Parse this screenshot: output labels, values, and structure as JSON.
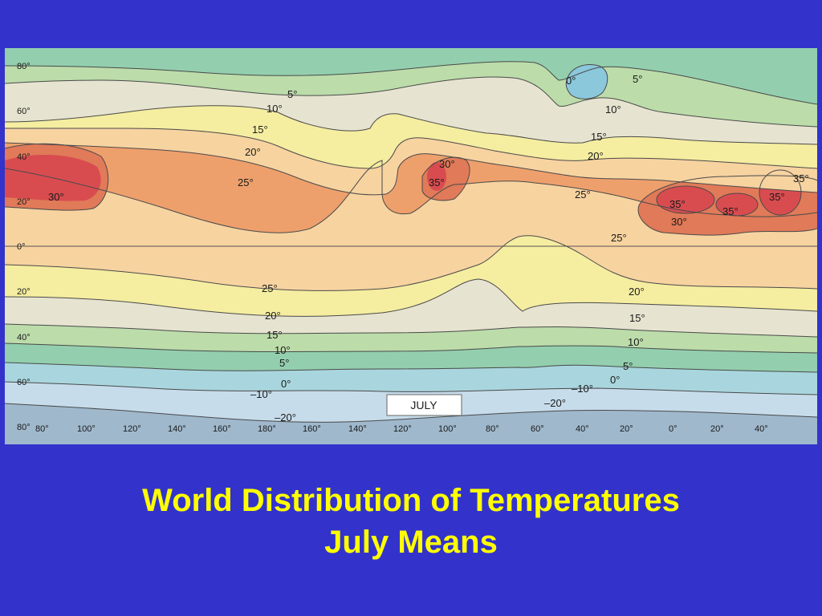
{
  "slide": {
    "background_color": "#3333cc",
    "title_color": "#ffff00",
    "title_line1": "World Distribution of Temperatures",
    "title_line2": "July Means"
  },
  "map": {
    "month_label": "JULY",
    "latitude_labels": [
      "80°",
      "60°",
      "40°",
      "20°",
      "0°",
      "20°",
      "40°",
      "60°",
      "80°"
    ],
    "longitude_labels": [
      "80°",
      "100°",
      "120°",
      "140°",
      "160°",
      "180°",
      "160°",
      "140°",
      "120°",
      "100°",
      "80°",
      "60°",
      "40°",
      "20°",
      "0°",
      "20°",
      "40°"
    ],
    "isotherm_labels": {
      "n5": "5°",
      "n10": "10°",
      "n15": "15°",
      "n20": "20°",
      "n25": "25°",
      "n30": "30°",
      "s25": "25°",
      "s20": "20°",
      "s15": "15°",
      "s10": "10°",
      "s5": "5°",
      "s0": "0°",
      "sm10": "–10°",
      "sm20": "–20°",
      "am30": "30°",
      "am35": "35°",
      "e0": "0°",
      "e5": "5°",
      "e10": "10°",
      "e15": "15°",
      "e20": "20°",
      "e25": "25°",
      "atl25": "25°",
      "atl20": "20°",
      "atl15": "15°",
      "atl10": "10°",
      "atl5": "5°",
      "atl0": "0°",
      "atlm10": "–10°",
      "atlm20": "–20°",
      "af35a": "35°",
      "af35b": "35°",
      "af35c": "35°",
      "af35d": "35°",
      "af30": "30°"
    },
    "zone_colors": {
      "below_m20": "#9fb8cc",
      "m20_to_m10": "#c6dceb",
      "m10_to_0": "#a9d6de",
      "0_to_5": "#93cfae",
      "5_to_10": "#bcdcaa",
      "10_to_15": "#e6e4d0",
      "15_to_20": "#f5eda0",
      "20_to_25": "#f7d3a0",
      "25_to_30": "#eea06c",
      "30_to_35": "#e07a58",
      "above_35": "#d84c50",
      "ice_cap": "#8cc8dc"
    }
  }
}
